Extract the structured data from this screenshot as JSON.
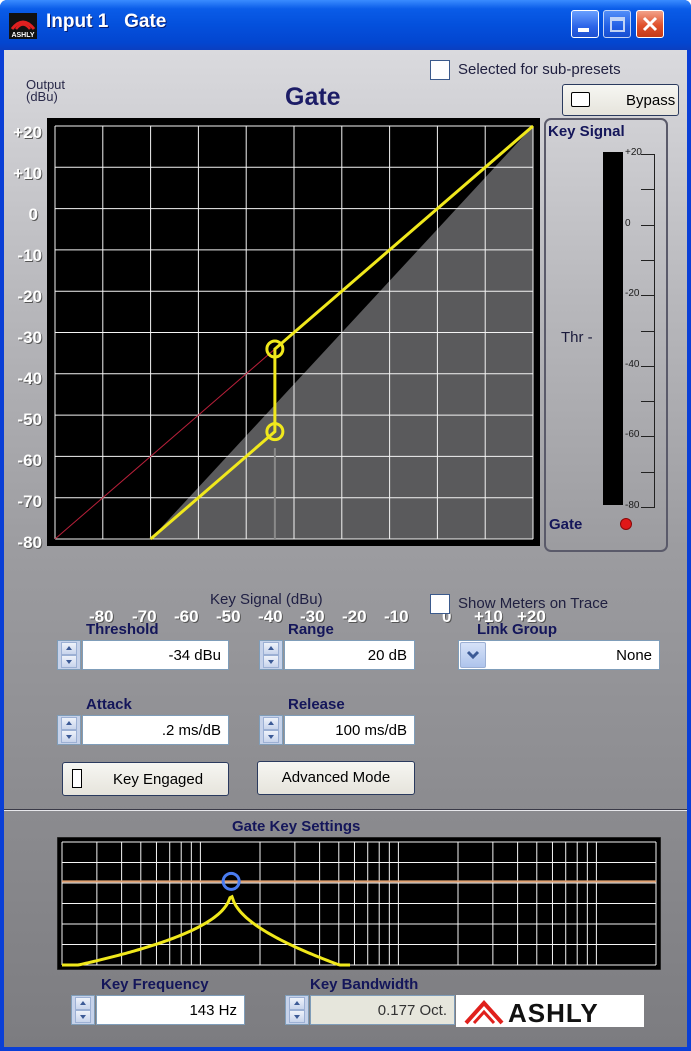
{
  "window": {
    "title": "Input 1   Gate"
  },
  "header": {
    "sub_presets_label": "Selected for sub-presets",
    "output_axis_label": "Output\n(dBu)",
    "graph_title": "Gate",
    "bypass_label": "Bypass"
  },
  "gate_chart": {
    "chart_data": {
      "type": "line",
      "title": "Gate",
      "xlabel": "Key Signal (dBu)",
      "ylabel": "Output (dBu)",
      "xlim": [
        -80,
        20
      ],
      "ylim": [
        -80,
        20
      ],
      "x_ticks": [
        "-80",
        "-70",
        "-60",
        "-50",
        "-40",
        "-30",
        "-20",
        "-10",
        "0",
        "+10",
        "+20"
      ],
      "y_ticks": [
        "+20",
        "+10",
        "0",
        "-10",
        "-20",
        "-30",
        "-40",
        "-50",
        "-60",
        "-70",
        "-80"
      ],
      "series": [
        {
          "x": [
            -60,
            -34,
            -34,
            20
          ],
          "y": [
            -80,
            -54,
            -34,
            20
          ],
          "color": "#f0e81c"
        },
        {
          "x": [
            -80,
            -34
          ],
          "y": [
            -80,
            -34
          ],
          "color": "#b8203a"
        }
      ],
      "markers": [
        {
          "x": -34,
          "y": -34
        },
        {
          "x": -34,
          "y": -54
        }
      ],
      "grid": true
    }
  },
  "meter": {
    "title": "Key Signal",
    "ticks": [
      "+20",
      "0",
      "-20",
      "-40",
      "-60",
      "-80"
    ],
    "threshold_label": "Thr -",
    "gate_label": "Gate",
    "gate_led_color": "#e01818"
  },
  "controls": {
    "key_axis_label": "Key Signal (dBu)",
    "show_meters_label": "Show Meters on Trace",
    "threshold": {
      "label": "Threshold",
      "value": "-34 dBu"
    },
    "range": {
      "label": "Range",
      "value": "20 dB"
    },
    "link_group": {
      "label": "Link Group",
      "value": "None"
    },
    "attack": {
      "label": "Attack",
      "value": ".2 ms/dB"
    },
    "release": {
      "label": "Release",
      "value": "100 ms/dB"
    },
    "key_engaged_label": "Key Engaged",
    "advanced_mode_label": "Advanced Mode"
  },
  "key_settings": {
    "title": "Gate Key Settings",
    "chart_data": {
      "type": "line",
      "title": "Gate Key Settings",
      "center_frequency_hz": 143,
      "bandwidth_oct": 0.177,
      "grid": true
    },
    "key_frequency": {
      "label": "Key Frequency",
      "value": "143 Hz"
    },
    "key_bandwidth": {
      "label": "Key Bandwidth",
      "value": "0.177 Oct."
    }
  },
  "brand": {
    "logo_text": "ASHLY",
    "logo_color": "#e0201c"
  }
}
